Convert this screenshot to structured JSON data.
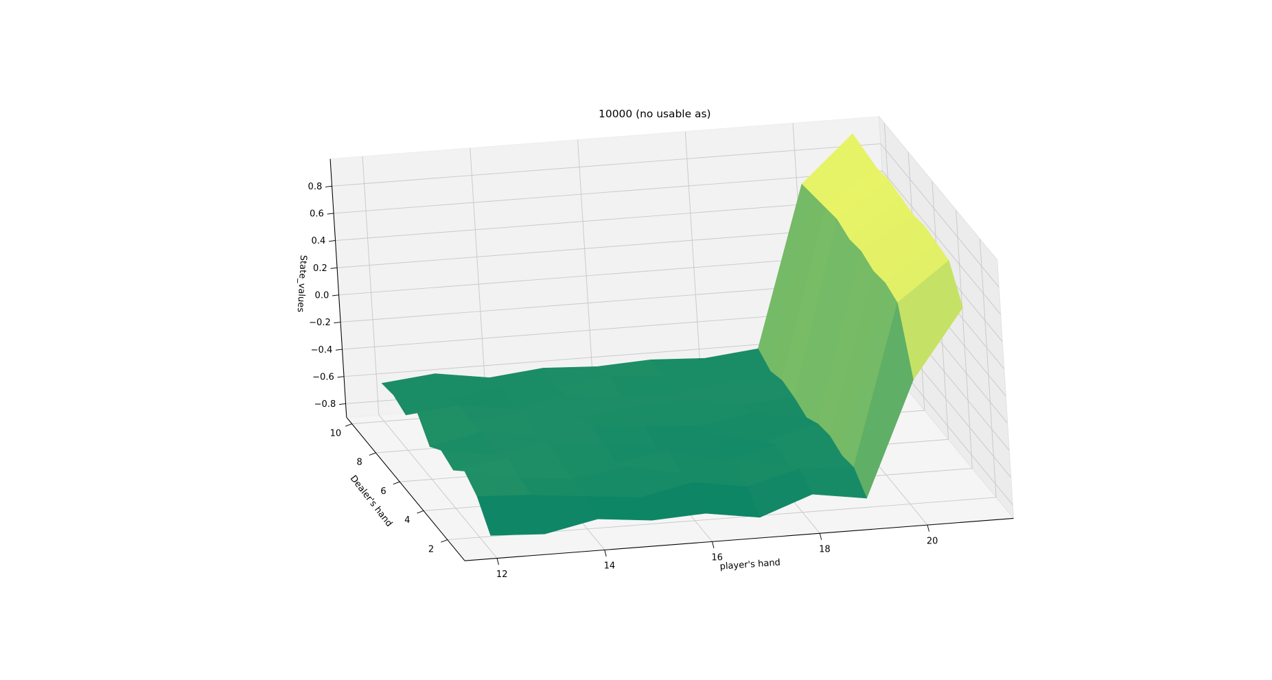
{
  "chart_data": {
    "type": "surface",
    "title": "10000 (no usable as)",
    "xlabel": "player's hand",
    "ylabel": "Dealer's hand",
    "zlabel": "State_values",
    "x": [
      12,
      13,
      14,
      15,
      16,
      17,
      18,
      19,
      20,
      21
    ],
    "y": [
      1,
      2,
      3,
      4,
      5,
      6,
      7,
      8,
      9,
      10
    ],
    "z": [
      [
        -0.78,
        -0.8,
        -0.72,
        -0.76,
        -0.74,
        -0.8,
        -0.66,
        -0.72,
        0.12,
        0.62
      ],
      [
        -0.6,
        -0.62,
        -0.66,
        -0.7,
        -0.62,
        -0.68,
        -0.58,
        -0.6,
        0.58,
        0.86
      ],
      [
        -0.52,
        -0.6,
        -0.64,
        -0.58,
        -0.66,
        -0.6,
        -0.66,
        -0.62,
        0.62,
        0.88
      ],
      [
        -0.62,
        -0.56,
        -0.62,
        -0.66,
        -0.6,
        -0.7,
        -0.62,
        -0.58,
        0.6,
        0.9
      ],
      [
        -0.58,
        -0.64,
        -0.58,
        -0.62,
        -0.68,
        -0.62,
        -0.7,
        -0.6,
        0.64,
        0.88
      ],
      [
        -0.66,
        -0.58,
        -0.64,
        -0.6,
        -0.64,
        -0.66,
        -0.6,
        -0.66,
        0.62,
        0.9
      ],
      [
        -0.5,
        -0.62,
        -0.56,
        -0.64,
        -0.6,
        -0.58,
        -0.64,
        -0.62,
        0.66,
        0.92
      ],
      [
        -0.64,
        -0.6,
        -0.66,
        -0.58,
        -0.62,
        -0.64,
        -0.58,
        -0.6,
        0.64,
        0.9
      ],
      [
        -0.6,
        -0.66,
        -0.6,
        -0.64,
        -0.58,
        -0.62,
        -0.66,
        -0.64,
        0.62,
        0.92
      ],
      [
        -0.62,
        -0.58,
        -0.64,
        -0.6,
        -0.62,
        -0.6,
        -0.62,
        -0.58,
        0.6,
        0.94
      ]
    ],
    "colormap": "summer",
    "xlim": [
      11.4,
      21.6
    ],
    "ylim": [
      0.55,
      10.45
    ],
    "zlim": [
      -0.9,
      1.0
    ],
    "xticks": [
      12,
      14,
      16,
      18,
      20
    ],
    "yticks": [
      2,
      4,
      6,
      8,
      10
    ],
    "zticks": [
      {
        "value": -0.8,
        "label": "−0.8"
      },
      {
        "value": -0.6,
        "label": "−0.6"
      },
      {
        "value": -0.4,
        "label": "−0.4"
      },
      {
        "value": -0.2,
        "label": "−0.2"
      },
      {
        "value": 0,
        "label": "0.0"
      },
      0.2,
      0.4,
      0.6,
      0.8
    ],
    "grid": true
  }
}
